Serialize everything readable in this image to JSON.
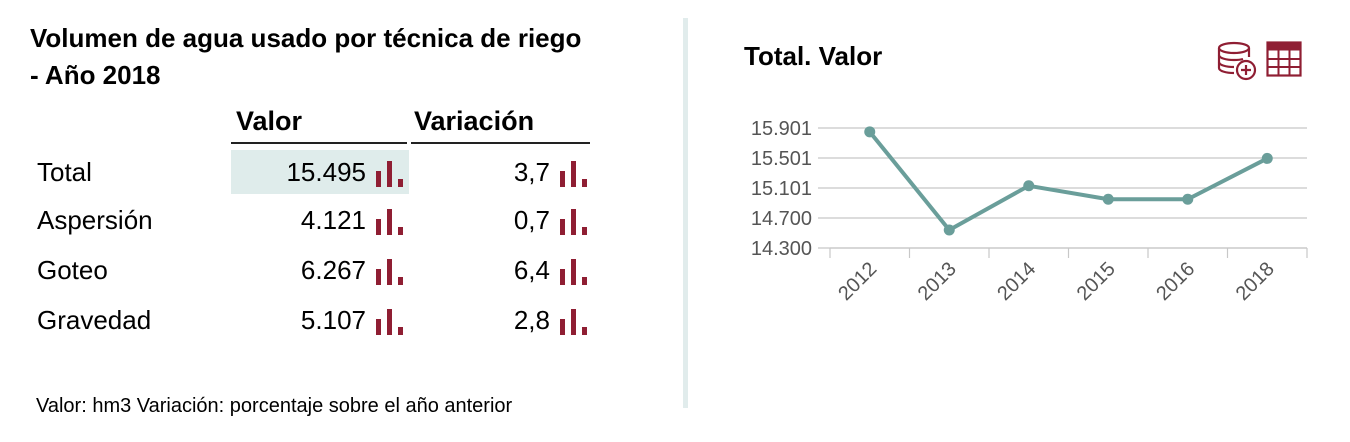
{
  "table": {
    "title": "Volumen de agua usado por técnica de riego - Año 2018",
    "col_valor": "Valor",
    "col_variacion": "Variación",
    "rows": [
      {
        "label": "Total",
        "valor": "15.495",
        "variacion": "3,7"
      },
      {
        "label": "Aspersión",
        "valor": "4.121",
        "variacion": "0,7"
      },
      {
        "label": "Goteo",
        "valor": "6.267",
        "variacion": "6,4"
      },
      {
        "label": "Gravedad",
        "valor": "5.107",
        "variacion": "2,8"
      }
    ],
    "footnote": "Valor: hm3 Variación: porcentaje sobre el año anterior"
  },
  "chart_title": "Total. Valor",
  "icons": [
    "database-add-icon",
    "table-icon",
    "bar-chart-icon"
  ],
  "colors": {
    "line": "#6a9e9a",
    "accent": "#8f1e33",
    "highlight": "#dfeceb",
    "divider": "#e1ecec"
  },
  "chart_data": {
    "type": "line",
    "title": "Total. Valor",
    "categories": [
      "2012",
      "2013",
      "2014",
      "2015",
      "2016",
      "2018"
    ],
    "series": [
      {
        "values": [
          15850,
          14540,
          15130,
          14950,
          14950,
          15495
        ]
      }
    ],
    "y_ticks": [
      "15.901",
      "15.501",
      "15.101",
      "14.700",
      "14.300"
    ],
    "y_tick_values": [
      15901,
      15501,
      15101,
      14700,
      14300
    ],
    "ylim": [
      14300,
      15901
    ],
    "grid": true,
    "legend": "none"
  }
}
